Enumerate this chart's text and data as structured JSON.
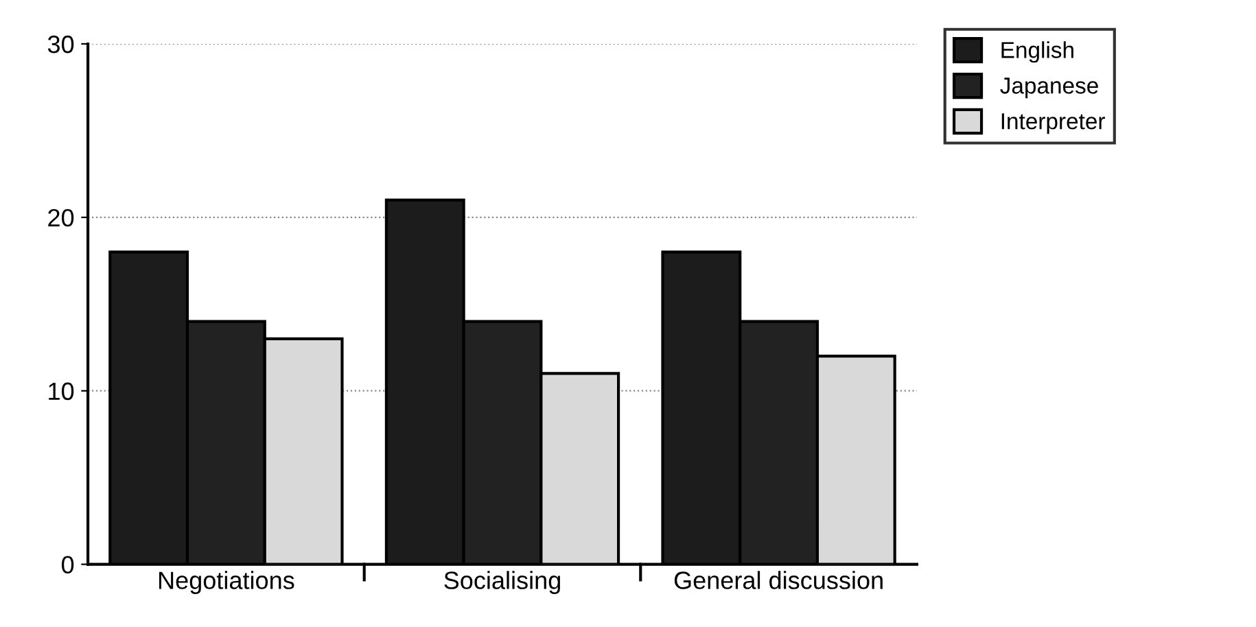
{
  "chart_data": {
    "type": "bar",
    "categories": [
      "Negotiations",
      "Socialising",
      "General discussion"
    ],
    "series": [
      {
        "name": "English",
        "color": "#1c1c1c",
        "values": [
          18,
          21,
          18
        ]
      },
      {
        "name": "Japanese",
        "color": "#222222",
        "values": [
          14,
          14,
          14
        ]
      },
      {
        "name": "Interpreter",
        "color": "#d9d9d9",
        "values": [
          13,
          11,
          12
        ]
      }
    ],
    "ylim": [
      0,
      30
    ],
    "yticks": [
      0,
      10,
      20,
      30
    ],
    "grid": "y",
    "legend": "top right"
  }
}
